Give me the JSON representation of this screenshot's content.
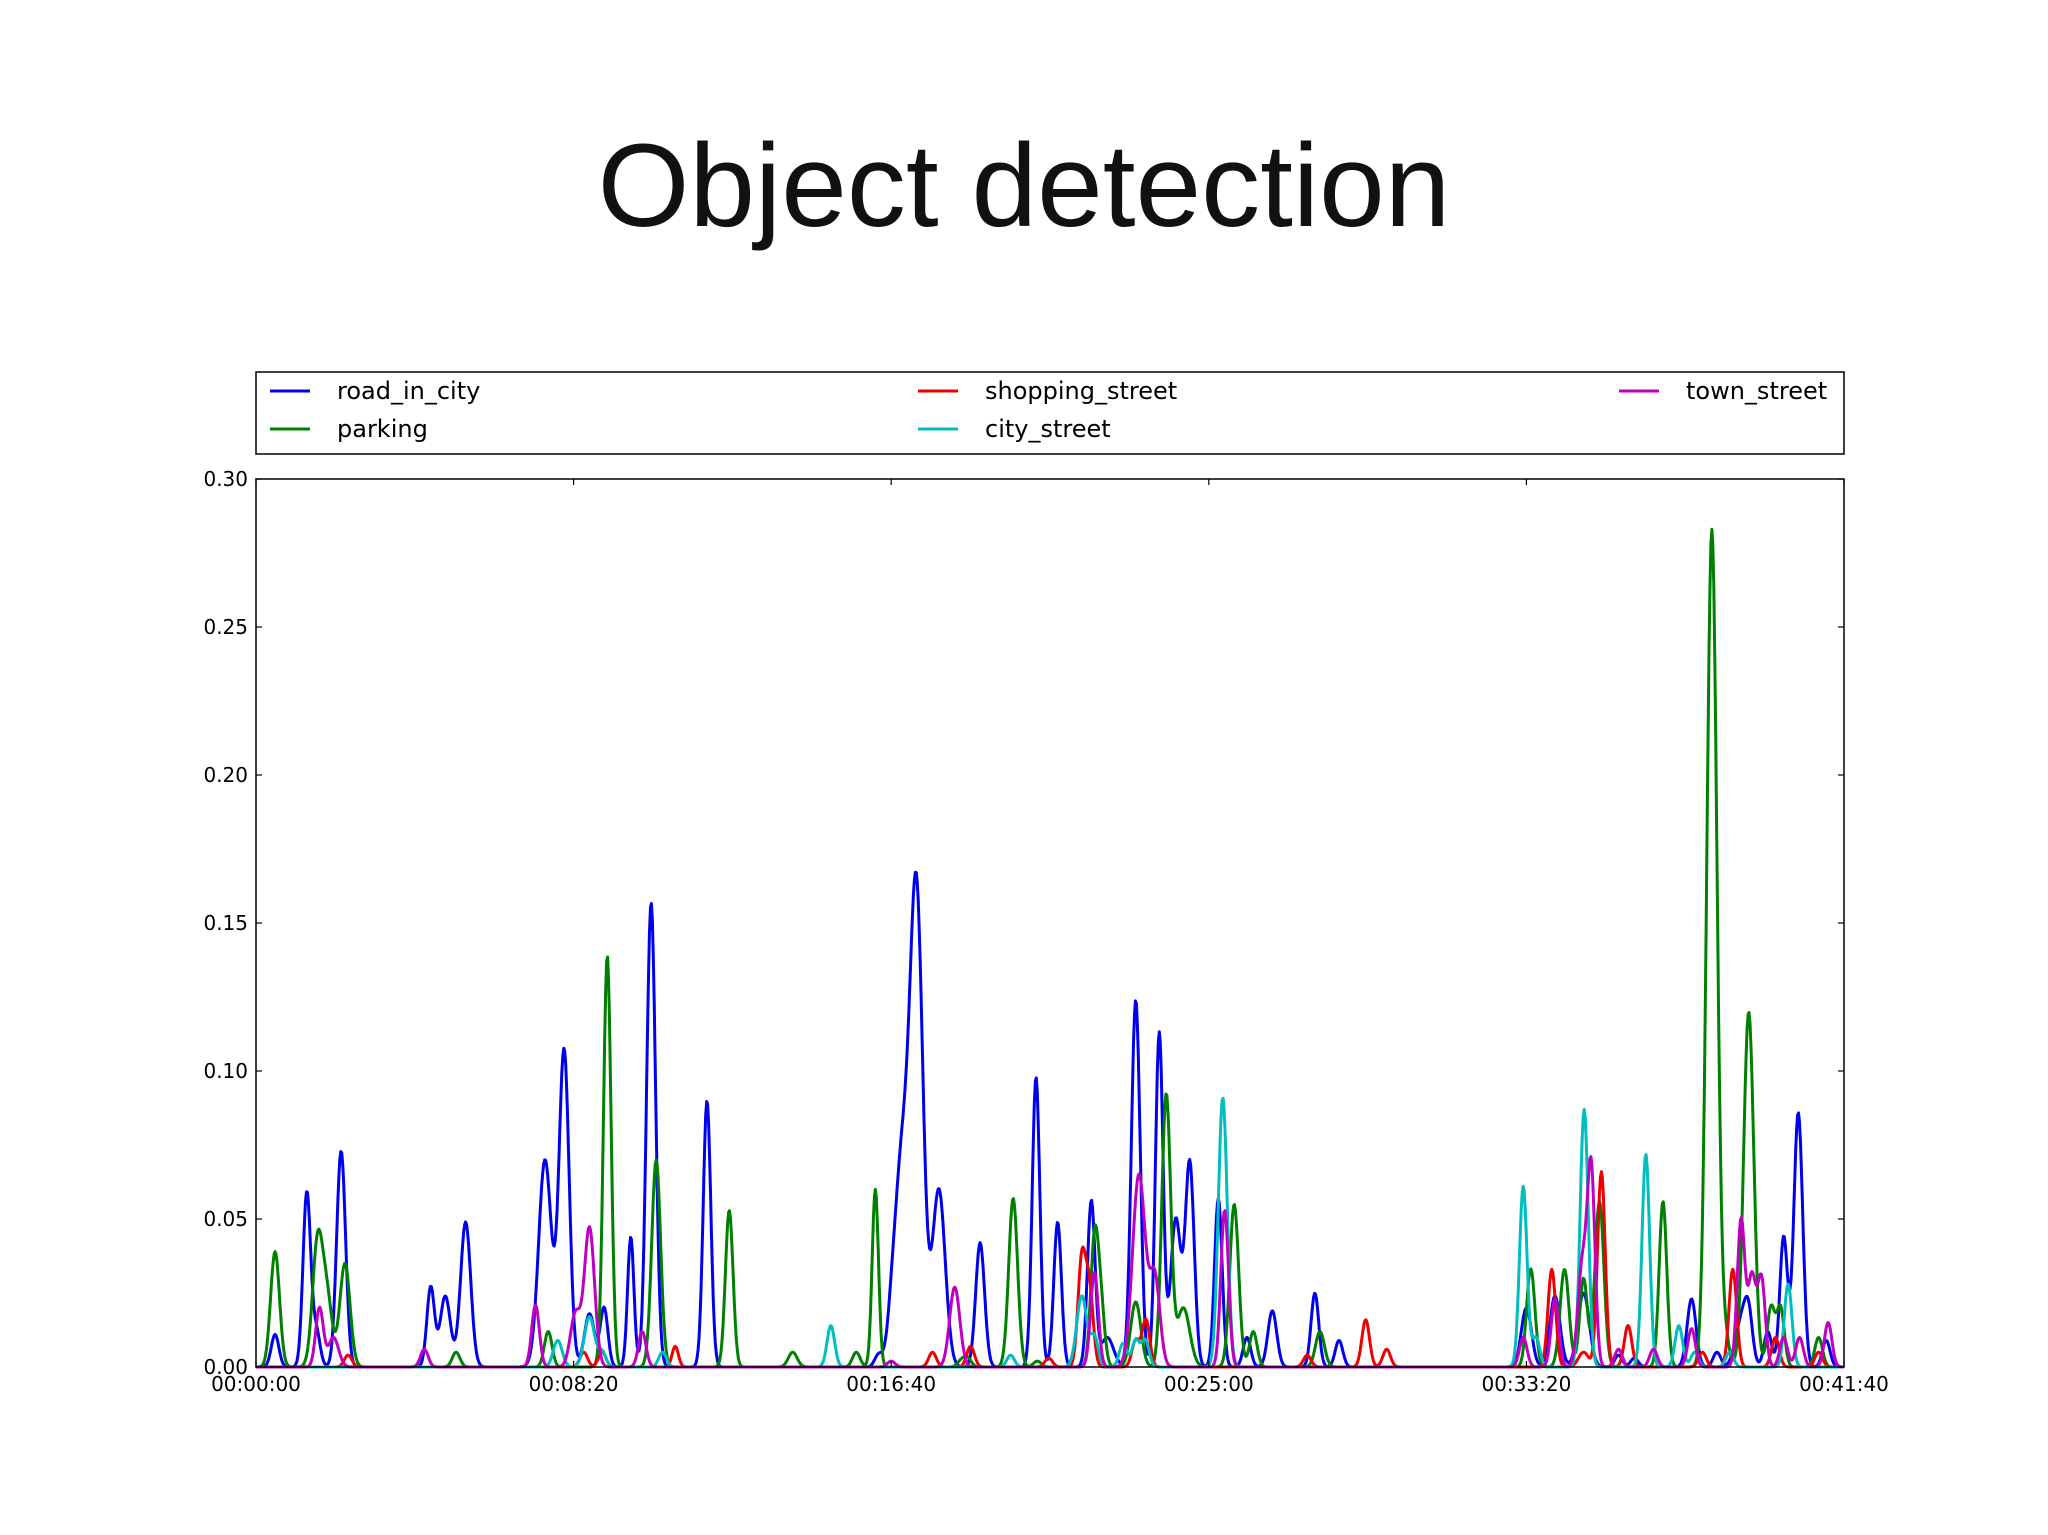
{
  "slide": {
    "title": "Object detection"
  },
  "chart_data": {
    "type": "line",
    "title": "",
    "xlabel": "",
    "ylabel": "",
    "x_ticks": [
      "00:00:00",
      "00:08:20",
      "00:16:40",
      "00:25:00",
      "00:33:20",
      "00:41:40"
    ],
    "x_tick_seconds": [
      0,
      500,
      1000,
      1500,
      2000,
      2500
    ],
    "y_ticks": [
      "0.00",
      "0.05",
      "0.10",
      "0.15",
      "0.20",
      "0.25",
      "0.30"
    ],
    "xlim": [
      0,
      2500
    ],
    "ylim": [
      0,
      0.3
    ],
    "legend_position": "top (above plot)",
    "grid": false,
    "series": [
      {
        "name": "road_in_city",
        "color": "#0000ee",
        "peaks": [
          [
            30,
            0.011,
            6
          ],
          [
            80,
            0.059,
            6
          ],
          [
            95,
            0.012,
            6
          ],
          [
            134,
            0.073,
            7
          ],
          [
            275,
            0.027,
            6
          ],
          [
            298,
            0.024,
            8
          ],
          [
            330,
            0.049,
            8
          ],
          [
            455,
            0.07,
            10
          ],
          [
            485,
            0.107,
            8
          ],
          [
            525,
            0.018,
            8
          ],
          [
            548,
            0.02,
            6
          ],
          [
            590,
            0.044,
            5
          ],
          [
            622,
            0.157,
            7
          ],
          [
            710,
            0.09,
            6
          ],
          [
            980,
            0.004,
            6
          ],
          [
            1000,
            0.006,
            6
          ],
          [
            1017,
            0.07,
            12
          ],
          [
            1040,
            0.155,
            10
          ],
          [
            1075,
            0.06,
            10
          ],
          [
            1140,
            0.042,
            7
          ],
          [
            1228,
            0.098,
            6
          ],
          [
            1262,
            0.049,
            6
          ],
          [
            1315,
            0.056,
            6
          ],
          [
            1340,
            0.01,
            10
          ],
          [
            1385,
            0.124,
            7
          ],
          [
            1422,
            0.113,
            6
          ],
          [
            1448,
            0.05,
            8
          ],
          [
            1470,
            0.069,
            7
          ],
          [
            1515,
            0.057,
            6
          ],
          [
            1560,
            0.01,
            6
          ],
          [
            1600,
            0.019,
            7
          ],
          [
            1667,
            0.025,
            6
          ],
          [
            1705,
            0.009,
            6
          ],
          [
            2000,
            0.02,
            8
          ],
          [
            2045,
            0.024,
            8
          ],
          [
            2090,
            0.025,
            9
          ],
          [
            2145,
            0.004,
            6
          ],
          [
            2170,
            0.003,
            6
          ],
          [
            2260,
            0.023,
            7
          ],
          [
            2300,
            0.005,
            6
          ],
          [
            2340,
            0.017,
            10
          ],
          [
            2350,
            0.012,
            6
          ],
          [
            2380,
            0.012,
            6
          ],
          [
            2405,
            0.044,
            6
          ],
          [
            2428,
            0.086,
            7
          ],
          [
            2472,
            0.009,
            6
          ]
        ]
      },
      {
        "name": "parking",
        "color": "#008000",
        "peaks": [
          [
            30,
            0.039,
            7
          ],
          [
            97,
            0.042,
            8
          ],
          [
            112,
            0.022,
            8
          ],
          [
            140,
            0.035,
            8
          ],
          [
            315,
            0.005,
            6
          ],
          [
            460,
            0.012,
            6
          ],
          [
            553,
            0.139,
            6
          ],
          [
            630,
            0.07,
            7
          ],
          [
            745,
            0.053,
            6
          ],
          [
            845,
            0.005,
            7
          ],
          [
            945,
            0.005,
            6
          ],
          [
            975,
            0.06,
            5
          ],
          [
            1110,
            0.002,
            6
          ],
          [
            1120,
            0.003,
            6
          ],
          [
            1192,
            0.057,
            7
          ],
          [
            1230,
            0.002,
            6
          ],
          [
            1320,
            0.042,
            6
          ],
          [
            1330,
            0.02,
            6
          ],
          [
            1385,
            0.022,
            8
          ],
          [
            1433,
            0.092,
            7
          ],
          [
            1460,
            0.02,
            10
          ],
          [
            1540,
            0.055,
            7
          ],
          [
            1570,
            0.012,
            6
          ],
          [
            1675,
            0.012,
            7
          ],
          [
            2005,
            0.022,
            6
          ],
          [
            2010,
            0.014,
            6
          ],
          [
            2060,
            0.033,
            7
          ],
          [
            2090,
            0.03,
            6
          ],
          [
            2115,
            0.056,
            7
          ],
          [
            2215,
            0.056,
            6
          ],
          [
            2292,
            0.283,
            8
          ],
          [
            2313,
            0.01,
            6
          ],
          [
            2350,
            0.12,
            8
          ],
          [
            2385,
            0.02,
            6
          ],
          [
            2400,
            0.02,
            6
          ],
          [
            2460,
            0.01,
            6
          ]
        ]
      },
      {
        "name": "shopping_street",
        "color": "#ee0000",
        "peaks": [
          [
            145,
            0.004,
            6
          ],
          [
            516,
            0.005,
            6
          ],
          [
            545,
            0.005,
            6
          ],
          [
            660,
            0.007,
            5
          ],
          [
            1065,
            0.005,
            6
          ],
          [
            1125,
            0.007,
            6
          ],
          [
            1248,
            0.003,
            6
          ],
          [
            1300,
            0.036,
            6
          ],
          [
            1312,
            0.026,
            6
          ],
          [
            1385,
            0.009,
            6
          ],
          [
            1401,
            0.016,
            6
          ],
          [
            1655,
            0.004,
            6
          ],
          [
            1747,
            0.016,
            6
          ],
          [
            1780,
            0.006,
            6
          ],
          [
            2040,
            0.033,
            6
          ],
          [
            2090,
            0.005,
            8
          ],
          [
            2118,
            0.066,
            6
          ],
          [
            2160,
            0.014,
            6
          ],
          [
            2277,
            0.005,
            6
          ],
          [
            2325,
            0.033,
            6
          ],
          [
            2392,
            0.01,
            6
          ],
          [
            2460,
            0.005,
            6
          ]
        ]
      },
      {
        "name": "city_street",
        "color": "#00bebe",
        "peaks": [
          [
            475,
            0.009,
            7
          ],
          [
            525,
            0.017,
            8
          ],
          [
            545,
            0.005,
            6
          ],
          [
            640,
            0.005,
            6
          ],
          [
            905,
            0.014,
            6
          ],
          [
            1188,
            0.004,
            6
          ],
          [
            1300,
            0.024,
            8
          ],
          [
            1320,
            0.01,
            6
          ],
          [
            1365,
            0.008,
            6
          ],
          [
            1385,
            0.009,
            6
          ],
          [
            1400,
            0.009,
            6
          ],
          [
            1522,
            0.091,
            7
          ],
          [
            1995,
            0.061,
            6
          ],
          [
            2015,
            0.01,
            6
          ],
          [
            2090,
            0.072,
            6
          ],
          [
            2095,
            0.02,
            6
          ],
          [
            2188,
            0.072,
            6
          ],
          [
            2240,
            0.014,
            6
          ],
          [
            2265,
            0.005,
            6
          ],
          [
            2320,
            0.005,
            6
          ],
          [
            2412,
            0.028,
            6
          ]
        ]
      },
      {
        "name": "town_street",
        "color": "#c000c0",
        "peaks": [
          [
            100,
            0.02,
            6
          ],
          [
            122,
            0.01,
            8
          ],
          [
            265,
            0.006,
            6
          ],
          [
            440,
            0.021,
            6
          ],
          [
            503,
            0.018,
            8
          ],
          [
            525,
            0.047,
            8
          ],
          [
            608,
            0.012,
            6
          ],
          [
            1000,
            0.002,
            6
          ],
          [
            1100,
            0.027,
            8
          ],
          [
            1320,
            0.032,
            6
          ],
          [
            1390,
            0.065,
            10
          ],
          [
            1415,
            0.03,
            8
          ],
          [
            1525,
            0.053,
            6
          ],
          [
            1995,
            0.01,
            6
          ],
          [
            2045,
            0.023,
            6
          ],
          [
            2088,
            0.034,
            7
          ],
          [
            2102,
            0.066,
            6
          ],
          [
            2145,
            0.006,
            6
          ],
          [
            2200,
            0.006,
            6
          ],
          [
            2260,
            0.013,
            6
          ],
          [
            2338,
            0.05,
            6
          ],
          [
            2355,
            0.03,
            6
          ],
          [
            2370,
            0.03,
            6
          ],
          [
            2405,
            0.01,
            6
          ],
          [
            2430,
            0.01,
            6
          ],
          [
            2475,
            0.015,
            6
          ]
        ]
      }
    ]
  }
}
